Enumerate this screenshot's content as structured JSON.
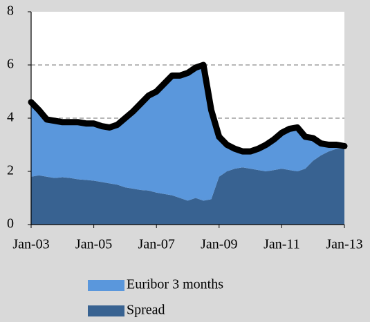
{
  "chart_data": {
    "type": "stacked-area",
    "categories": [
      "Jan-03",
      null,
      null,
      null,
      null,
      null,
      null,
      null,
      "Jan-05",
      null,
      null,
      null,
      null,
      null,
      null,
      null,
      "Jan-07",
      null,
      null,
      null,
      null,
      null,
      null,
      null,
      "Jan-09",
      null,
      null,
      null,
      null,
      null,
      null,
      null,
      "Jan-11",
      null,
      null,
      null,
      null,
      null,
      null,
      null,
      "Jan-13"
    ],
    "series": [
      {
        "name": "Spread",
        "color": "#386291",
        "values": [
          1.8,
          1.85,
          1.8,
          1.75,
          1.78,
          1.75,
          1.7,
          1.68,
          1.65,
          1.6,
          1.55,
          1.5,
          1.4,
          1.35,
          1.3,
          1.28,
          1.2,
          1.15,
          1.1,
          1.0,
          0.9,
          1.0,
          0.9,
          0.95,
          1.8,
          2.0,
          2.1,
          2.15,
          2.1,
          2.05,
          2.0,
          2.05,
          2.1,
          2.05,
          2.0,
          2.1,
          2.4,
          2.6,
          2.75,
          2.85,
          2.85
        ]
      },
      {
        "name": "Euribor 3 months",
        "color": "#5a97dc",
        "values": [
          2.8,
          2.45,
          2.15,
          2.15,
          2.07,
          2.1,
          2.15,
          2.12,
          2.15,
          2.1,
          2.1,
          2.25,
          2.6,
          2.9,
          3.25,
          3.57,
          3.8,
          4.15,
          4.5,
          4.6,
          4.8,
          4.9,
          5.1,
          3.35,
          1.5,
          1.0,
          0.75,
          0.6,
          0.65,
          0.8,
          1.0,
          1.15,
          1.35,
          1.55,
          1.65,
          1.2,
          0.85,
          0.45,
          0.25,
          0.15,
          0.1
        ]
      },
      {
        "type": "line",
        "color": "#000000",
        "values": [
          4.6,
          4.3,
          3.95,
          3.9,
          3.85,
          3.85,
          3.85,
          3.8,
          3.8,
          3.7,
          3.65,
          3.75,
          4.0,
          4.25,
          4.55,
          4.85,
          5.0,
          5.3,
          5.6,
          5.6,
          5.7,
          5.9,
          6.0,
          4.3,
          3.3,
          3.0,
          2.85,
          2.75,
          2.75,
          2.85,
          3.0,
          3.2,
          3.45,
          3.6,
          3.65,
          3.3,
          3.25,
          3.05,
          3.0,
          3.0,
          2.95
        ]
      }
    ],
    "ylim": [
      0,
      8
    ],
    "yticks": [
      0,
      2,
      4,
      6,
      8
    ],
    "grid": true
  }
}
